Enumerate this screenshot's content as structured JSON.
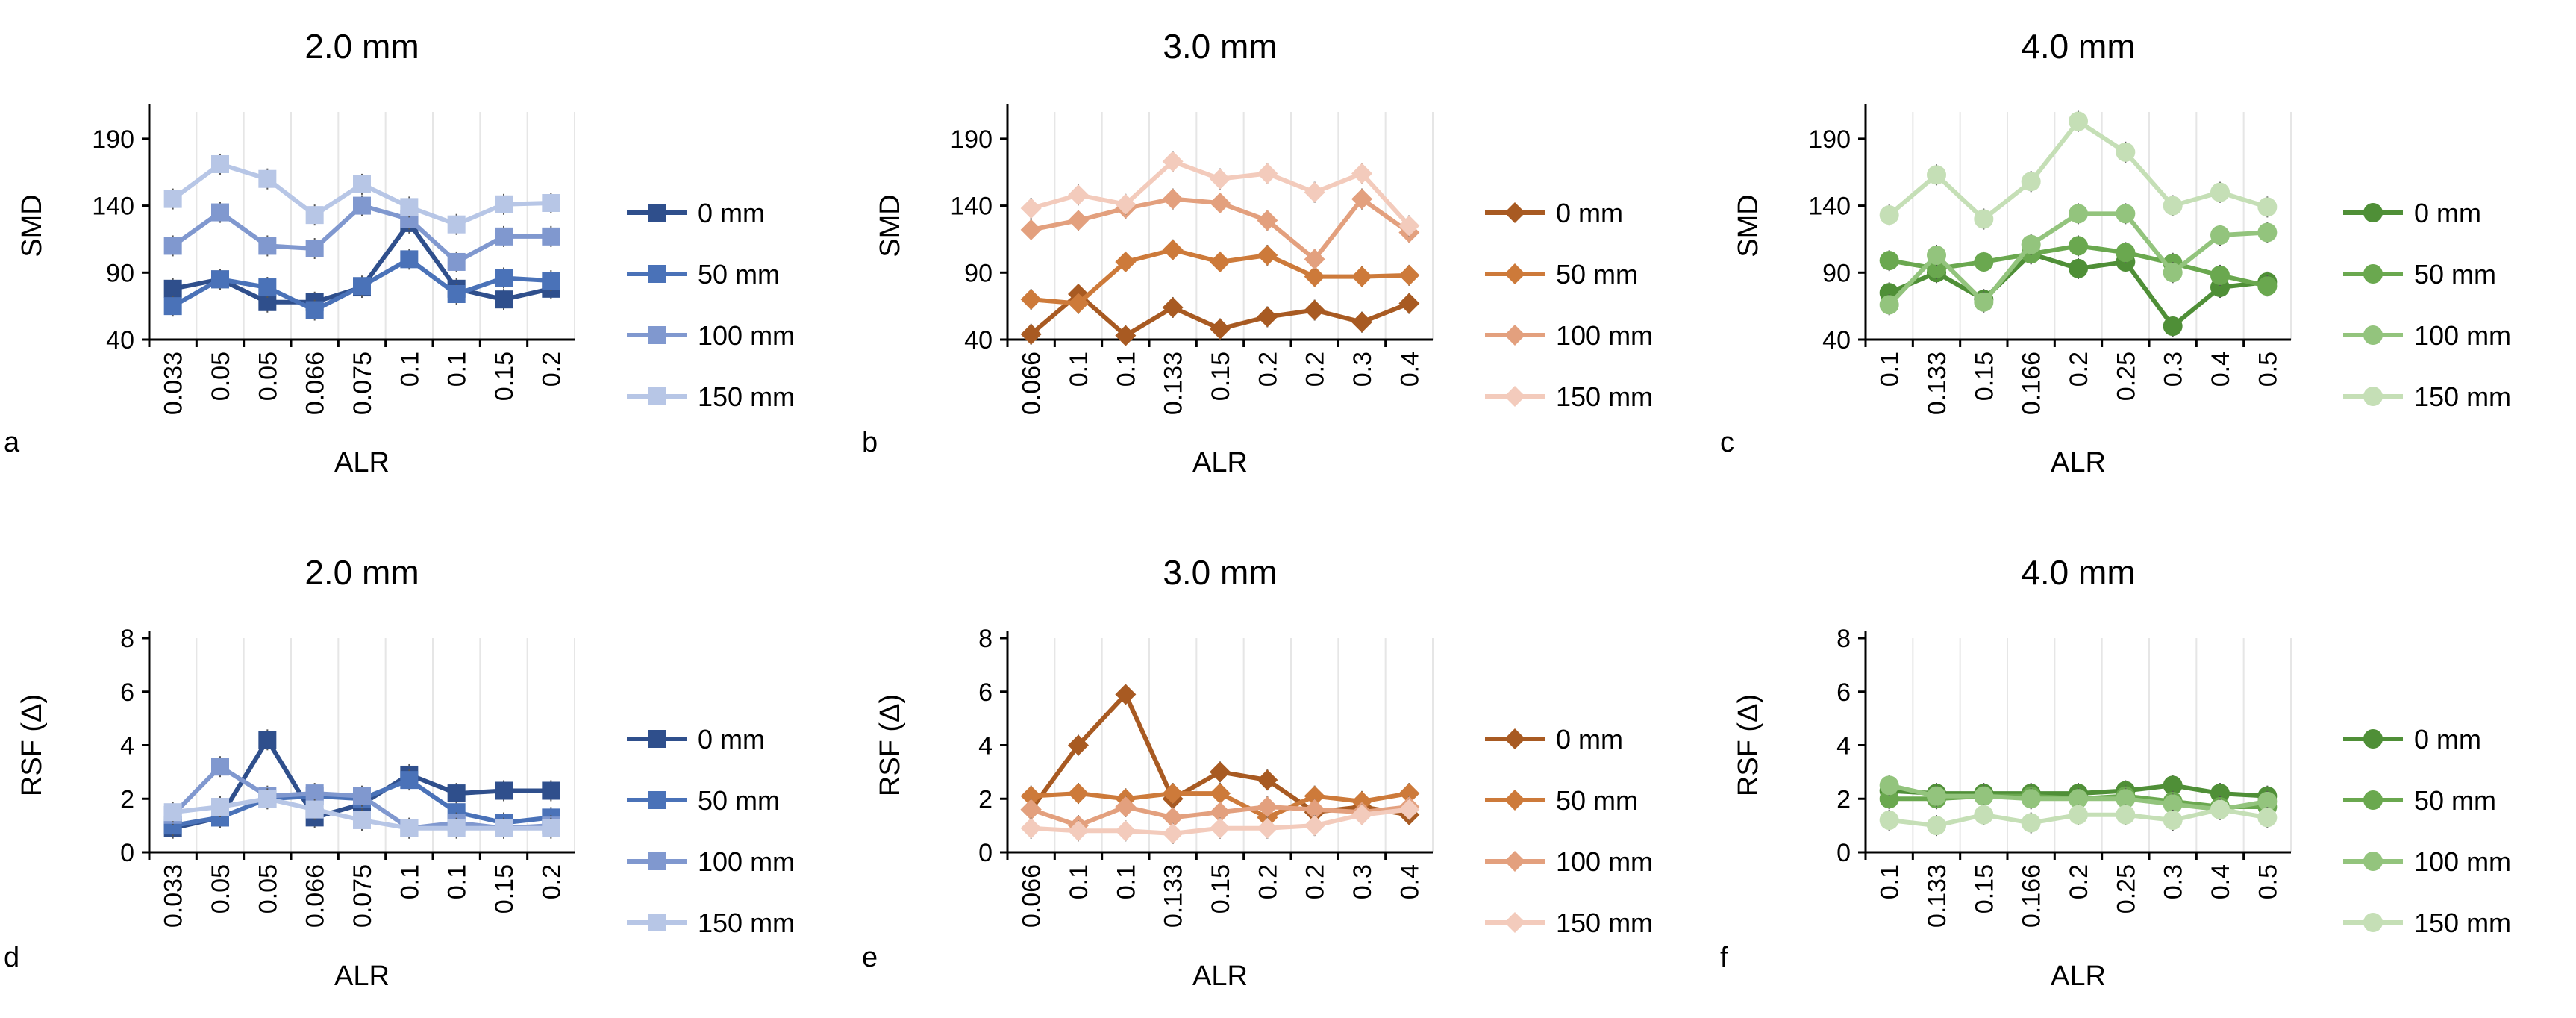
{
  "figure": {
    "panel_labels": [
      "a",
      "b",
      "c",
      "d",
      "e",
      "f"
    ]
  },
  "colors": {
    "blue": [
      "#2f4f8c",
      "#4a72b8",
      "#8098cf",
      "#b7c6e6"
    ],
    "orange": [
      "#a85a22",
      "#cd7a3a",
      "#e3a07e",
      "#f3cbbc"
    ],
    "green": [
      "#4f8f37",
      "#6aa84f",
      "#93c47d",
      "#c5dfb6"
    ]
  },
  "chart_data": [
    {
      "type": "line",
      "title": "2.0 mm",
      "panel": "a",
      "xlabel": "ALR",
      "ylabel": "SMD",
      "ylim": [
        40,
        210
      ],
      "yticks": [
        40,
        90,
        140,
        190
      ],
      "categories": [
        "0.033",
        "0.05",
        "0.05",
        "0.066",
        "0.075",
        "0.1",
        "0.1",
        "0.15",
        "0.2"
      ],
      "marker": "square",
      "palette": "blue",
      "series": [
        {
          "name": "0 mm",
          "values": [
            78,
            85,
            68,
            68,
            79,
            127,
            78,
            70,
            78
          ]
        },
        {
          "name": "50 mm",
          "values": [
            65,
            85,
            79,
            62,
            80,
            100,
            74,
            86,
            84
          ]
        },
        {
          "name": "100 mm",
          "values": [
            110,
            135,
            110,
            108,
            140,
            130,
            98,
            117,
            117
          ]
        },
        {
          "name": "150 mm",
          "values": [
            145,
            171,
            160,
            133,
            156,
            139,
            126,
            141,
            142
          ]
        }
      ]
    },
    {
      "type": "line",
      "title": "3.0 mm",
      "panel": "b",
      "xlabel": "ALR",
      "ylabel": "SMD",
      "ylim": [
        40,
        210
      ],
      "yticks": [
        40,
        90,
        140,
        190
      ],
      "categories": [
        "0.066",
        "0.1",
        "0.1",
        "0.133",
        "0.15",
        "0.2",
        "0.2",
        "0.3",
        "0.4"
      ],
      "marker": "diamond",
      "palette": "orange",
      "series": [
        {
          "name": "0 mm",
          "values": [
            44,
            74,
            43,
            64,
            48,
            57,
            62,
            53,
            67
          ]
        },
        {
          "name": "50 mm",
          "values": [
            70,
            67,
            98,
            107,
            98,
            103,
            87,
            87,
            88
          ]
        },
        {
          "name": "100 mm",
          "values": [
            122,
            129,
            138,
            145,
            142,
            129,
            100,
            145,
            120
          ]
        },
        {
          "name": "150 mm",
          "values": [
            138,
            148,
            141,
            173,
            160,
            164,
            150,
            164,
            125
          ]
        }
      ]
    },
    {
      "type": "line",
      "title": "4.0 mm",
      "panel": "c",
      "xlabel": "ALR",
      "ylabel": "SMD",
      "ylim": [
        40,
        210
      ],
      "yticks": [
        40,
        90,
        140,
        190
      ],
      "categories": [
        "0.1",
        "0.133",
        "0.15",
        "0.166",
        "0.2",
        "0.25",
        "0.3",
        "0.4",
        "0.5"
      ],
      "marker": "circle",
      "palette": "green",
      "series": [
        {
          "name": "0 mm",
          "values": [
            75,
            90,
            70,
            104,
            93,
            98,
            50,
            79,
            83
          ]
        },
        {
          "name": "50 mm",
          "values": [
            99,
            93,
            98,
            104,
            110,
            105,
            97,
            88,
            80
          ]
        },
        {
          "name": "100 mm",
          "values": [
            66,
            103,
            68,
            111,
            134,
            134,
            90,
            118,
            120
          ]
        },
        {
          "name": "150 mm",
          "values": [
            133,
            163,
            130,
            158,
            203,
            180,
            140,
            150,
            139
          ]
        }
      ]
    },
    {
      "type": "line",
      "title": "2.0 mm",
      "panel": "d",
      "xlabel": "ALR",
      "ylabel": "RSF (Δ)",
      "ylim": [
        0,
        8
      ],
      "yticks": [
        0,
        2,
        4,
        6,
        8
      ],
      "categories": [
        "0.033",
        "0.05",
        "0.05",
        "0.066",
        "0.075",
        "0.1",
        "0.1",
        "0.15",
        "0.2"
      ],
      "marker": "square",
      "palette": "blue",
      "series": [
        {
          "name": "0 mm",
          "values": [
            0.9,
            1.3,
            4.2,
            1.3,
            1.8,
            2.9,
            2.2,
            2.3,
            2.3
          ]
        },
        {
          "name": "50 mm",
          "values": [
            1.0,
            1.3,
            2.0,
            2.1,
            2.0,
            2.7,
            1.5,
            1.1,
            1.3
          ]
        },
        {
          "name": "100 mm",
          "values": [
            1.4,
            3.2,
            2.1,
            2.2,
            2.1,
            0.9,
            1.1,
            0.9,
            1.0
          ]
        },
        {
          "name": "150 mm",
          "values": [
            1.5,
            1.7,
            2.0,
            1.6,
            1.2,
            0.9,
            0.9,
            0.9,
            0.9
          ]
        }
      ]
    },
    {
      "type": "line",
      "title": "3.0 mm",
      "panel": "e",
      "xlabel": "ALR",
      "ylabel": "RSF (Δ)",
      "ylim": [
        0,
        8
      ],
      "yticks": [
        0,
        2,
        4,
        6,
        8
      ],
      "categories": [
        "0.066",
        "0.1",
        "0.1",
        "0.133",
        "0.15",
        "0.2",
        "0.2",
        "0.3",
        "0.4"
      ],
      "marker": "diamond",
      "palette": "orange",
      "series": [
        {
          "name": "0 mm",
          "values": [
            1.6,
            4.0,
            5.9,
            2.0,
            3.0,
            2.7,
            1.5,
            1.7,
            1.4
          ]
        },
        {
          "name": "50 mm",
          "values": [
            2.1,
            2.2,
            2.0,
            2.2,
            2.2,
            1.3,
            2.1,
            1.9,
            2.2
          ]
        },
        {
          "name": "100 mm",
          "values": [
            1.6,
            1.0,
            1.7,
            1.3,
            1.5,
            1.7,
            1.6,
            1.5,
            1.7
          ]
        },
        {
          "name": "150 mm",
          "values": [
            0.9,
            0.8,
            0.8,
            0.7,
            0.9,
            0.9,
            1.0,
            1.4,
            1.6
          ]
        }
      ]
    },
    {
      "type": "line",
      "title": "4.0 mm",
      "panel": "f",
      "xlabel": "ALR",
      "ylabel": "RSF (Δ)",
      "ylim": [
        0,
        8
      ],
      "yticks": [
        0,
        2,
        4,
        6,
        8
      ],
      "categories": [
        "0.1",
        "0.133",
        "0.15",
        "0.166",
        "0.2",
        "0.25",
        "0.3",
        "0.4",
        "0.5"
      ],
      "marker": "circle",
      "palette": "green",
      "series": [
        {
          "name": "0 mm",
          "values": [
            2.3,
            2.2,
            2.2,
            2.2,
            2.2,
            2.3,
            2.5,
            2.2,
            2.1
          ]
        },
        {
          "name": "50 mm",
          "values": [
            2.0,
            2.0,
            2.1,
            2.1,
            2.0,
            2.1,
            1.9,
            1.7,
            1.7
          ]
        },
        {
          "name": "100 mm",
          "values": [
            2.5,
            2.1,
            2.1,
            2.0,
            2.0,
            2.0,
            1.8,
            1.6,
            1.9
          ]
        },
        {
          "name": "150 mm",
          "values": [
            1.2,
            1.0,
            1.4,
            1.1,
            1.4,
            1.4,
            1.2,
            1.6,
            1.3
          ]
        }
      ]
    }
  ]
}
